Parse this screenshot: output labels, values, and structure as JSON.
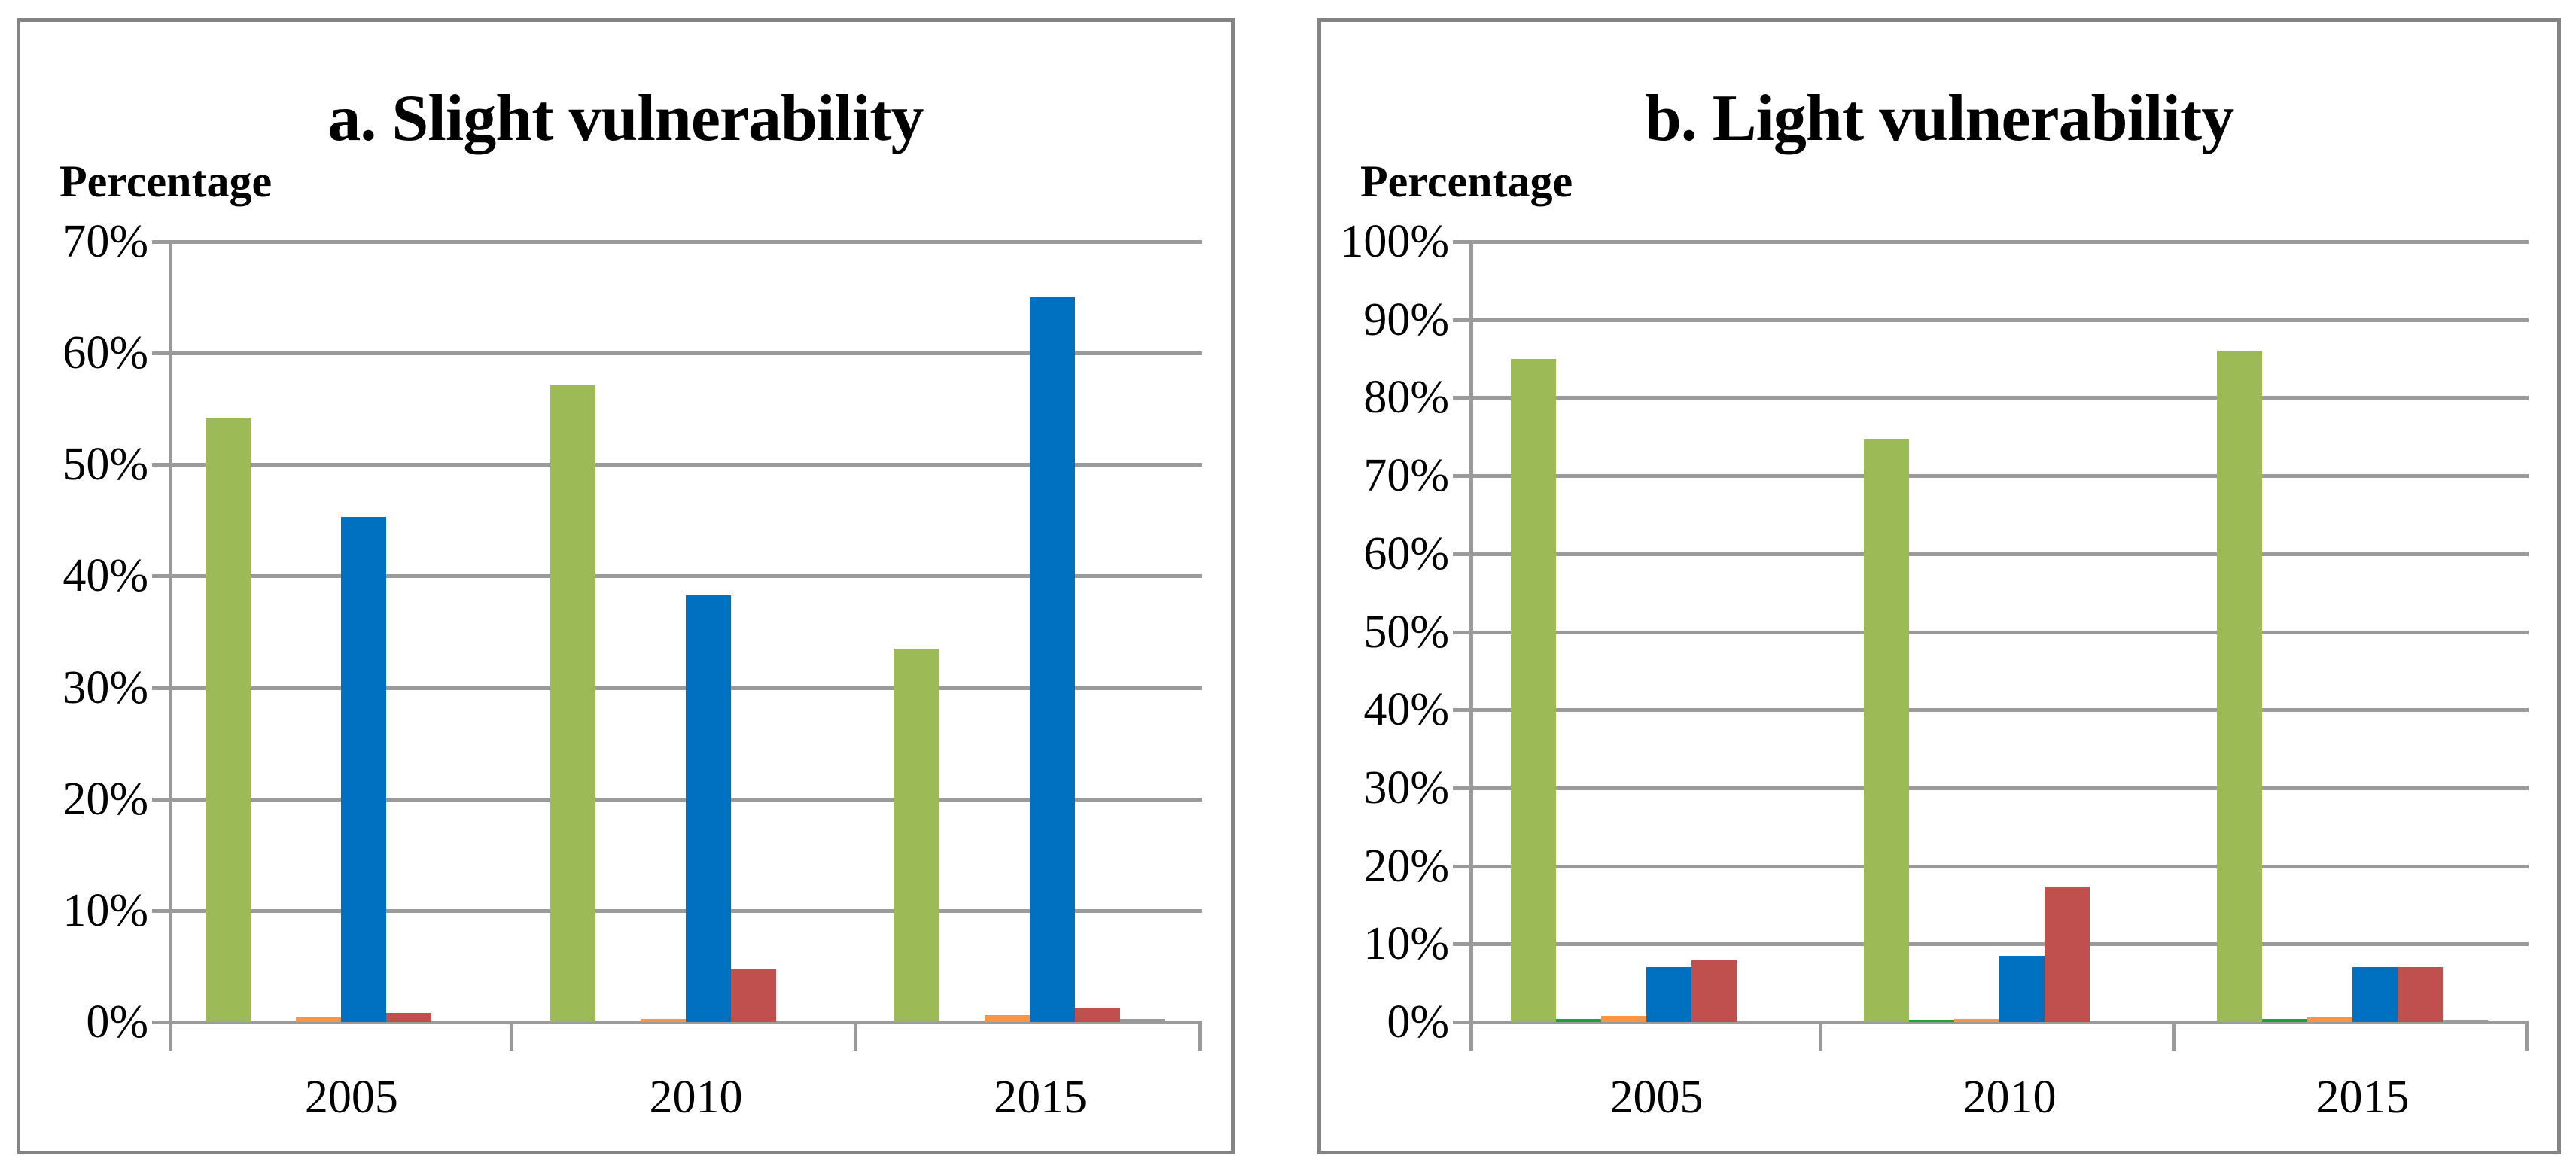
{
  "figure": {
    "background": "#ffffff",
    "border_color": "#848484",
    "gridline_color": "#9a9a9a",
    "text_color": "#000000"
  },
  "chart_data": [
    {
      "type": "bar",
      "panel": "a",
      "title": "a. Slight vulnerability",
      "ylabel": "Percentage",
      "xlabel": "",
      "categories": [
        "2005",
        "2010",
        "2015"
      ],
      "ylim": [
        0,
        70
      ],
      "yticks": [
        "70%",
        "60%",
        "50%",
        "40%",
        "30%",
        "20%",
        "10%",
        "0%"
      ],
      "grid": true,
      "legend": "none",
      "series": [
        {
          "name": "light-green",
          "color": "#9CBA56",
          "values": [
            54.2,
            57.1,
            33.5
          ]
        },
        {
          "name": "dark-green",
          "color": "#1EA13C",
          "values": [
            0,
            0,
            0
          ]
        },
        {
          "name": "orange",
          "color": "#F79646",
          "values": [
            0.4,
            0.3,
            0.6
          ]
        },
        {
          "name": "blue",
          "color": "#0070C0",
          "values": [
            45.3,
            38.3,
            65.0
          ]
        },
        {
          "name": "red",
          "color": "#C0504D",
          "values": [
            0.8,
            4.7,
            1.3
          ]
        },
        {
          "name": "gray",
          "color": "#999999",
          "values": [
            0,
            0,
            0.3
          ]
        }
      ]
    },
    {
      "type": "bar",
      "panel": "b",
      "title": "b. Light vulnerability",
      "ylabel": "Percentage",
      "xlabel": "",
      "categories": [
        "2005",
        "2010",
        "2015"
      ],
      "ylim": [
        0,
        100
      ],
      "yticks": [
        "100%",
        "90%",
        "80%",
        "70%",
        "60%",
        "50%",
        "40%",
        "30%",
        "20%",
        "10%",
        "0%"
      ],
      "grid": true,
      "legend": "none",
      "series": [
        {
          "name": "light-green",
          "color": "#9CBA56",
          "values": [
            85.0,
            74.7,
            86.0
          ]
        },
        {
          "name": "dark-green",
          "color": "#1EA13C",
          "values": [
            0.4,
            0.3,
            0.4
          ]
        },
        {
          "name": "orange",
          "color": "#F79646",
          "values": [
            0.8,
            0.4,
            0.6
          ]
        },
        {
          "name": "blue",
          "color": "#0070C0",
          "values": [
            7.0,
            8.5,
            7.0
          ]
        },
        {
          "name": "red",
          "color": "#C0504D",
          "values": [
            7.9,
            17.4,
            7.0
          ]
        },
        {
          "name": "gray",
          "color": "#999999",
          "values": [
            0,
            0,
            0.3
          ]
        }
      ]
    }
  ]
}
